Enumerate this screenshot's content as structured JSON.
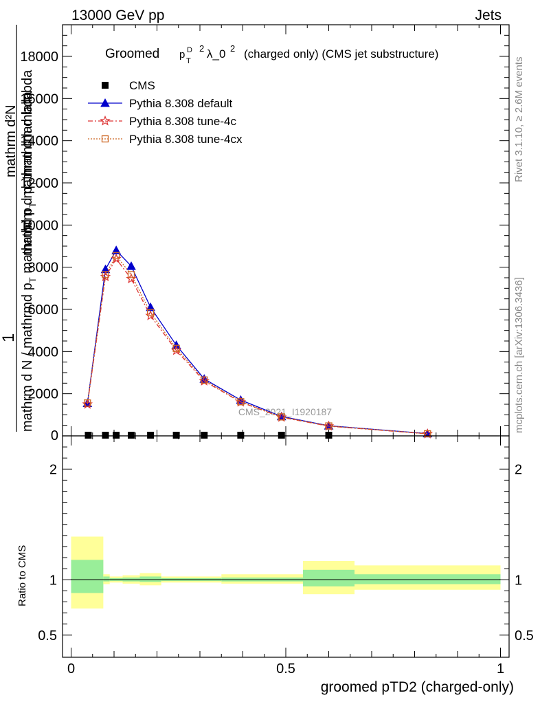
{
  "header": {
    "left": "13000 GeV pp",
    "right": "Jets"
  },
  "side_labels": {
    "rivet": "Rivet 3.1.10, ≥ 2.6M events",
    "mcplots": "mcplots.cern.ch [arXiv:1306.3436]"
  },
  "watermark": "CMS_2021_I1920187",
  "title": {
    "main": "Groomed",
    "p": "p",
    "sub": "T",
    "sup": "D",
    "sq": "2",
    "rest": "λ_0",
    "rest_sup": "2",
    "tail": "(charged only) (CMS jet substructure)"
  },
  "ylabel_main": {
    "one": "1",
    "den": "mathrm d N / mathrmd p",
    "den_sub": "T",
    "den_tail": " mathrmd p",
    "den_sub2": "T",
    "den_tail2": " mathrm d lambda",
    "num": "mathrm d²N",
    "num_sub": "",
    "overlap": "mathrm d p",
    "overlap_sub": "T",
    "overlap_tail": " mathrm d lambda"
  },
  "ylabel_ratio": "Ratio to CMS",
  "xlabel": "groomed pTD2 (charged-only)",
  "legend": [
    {
      "label": "CMS",
      "style": "cms"
    },
    {
      "label": "Pythia 8.308 default",
      "style": "default"
    },
    {
      "label": "Pythia 8.308 tune-4c",
      "style": "tune4c"
    },
    {
      "label": "Pythia 8.308 tune-4cx",
      "style": "tune4cx"
    }
  ],
  "colors": {
    "default": "#0000cc",
    "tune4c": "#dd3333",
    "tune4cx": "#cc6622",
    "band_inner": "#99ee99",
    "band_outer": "#ffff99",
    "cms": "#000000"
  },
  "chart_data": {
    "type": "line",
    "main": {
      "xlim": [
        -0.02,
        1.02
      ],
      "ylim": [
        0,
        19500
      ],
      "yticks": [
        2000,
        4000,
        6000,
        8000,
        10000,
        12000,
        14000,
        16000,
        18000
      ],
      "ytick_labels": [
        "2000",
        "4000",
        "6000",
        "8000",
        "10000",
        "12000",
        "14000",
        "16000",
        "18000"
      ],
      "cms": {
        "x": [
          0.04,
          0.08,
          0.105,
          0.14,
          0.185,
          0.245,
          0.31,
          0.395,
          0.49,
          0.6
        ],
        "y": [
          0,
          0,
          0,
          0,
          0,
          0,
          0,
          0,
          0,
          0
        ]
      },
      "series": [
        {
          "name": "Pythia 8.308 default",
          "style": "default",
          "x": [
            0.038,
            0.08,
            0.105,
            0.14,
            0.185,
            0.245,
            0.31,
            0.395,
            0.49,
            0.6,
            0.83
          ],
          "y": [
            1550,
            7900,
            8800,
            8050,
            6100,
            4300,
            2700,
            1700,
            920,
            480,
            110
          ]
        },
        {
          "name": "Pythia 8.308 tune-4c",
          "style": "tune4c",
          "x": [
            0.038,
            0.08,
            0.105,
            0.14,
            0.185,
            0.245,
            0.31,
            0.395,
            0.49,
            0.6,
            0.83
          ],
          "y": [
            1500,
            7550,
            8400,
            7450,
            5700,
            4050,
            2600,
            1600,
            880,
            460,
            95
          ]
        },
        {
          "name": "Pythia 8.308 tune-4cx",
          "style": "tune4cx",
          "x": [
            0.038,
            0.08,
            0.105,
            0.14,
            0.185,
            0.245,
            0.31,
            0.395,
            0.49,
            0.6,
            0.83
          ],
          "y": [
            1560,
            7650,
            8550,
            7650,
            5850,
            4150,
            2650,
            1620,
            900,
            470,
            100
          ]
        }
      ]
    },
    "ratio": {
      "ylim": [
        0.3,
        2.3
      ],
      "yticks": [
        0.5,
        1,
        2
      ],
      "ytick_labels": [
        "0.5",
        "1",
        "2"
      ],
      "xticks": [
        0,
        0.5,
        1
      ],
      "xtick_labels": [
        "0",
        "0.5",
        "1"
      ],
      "bins": [
        {
          "x0": 0.0,
          "x1": 0.075,
          "inner": [
            0.88,
            1.18
          ],
          "outer": [
            0.74,
            1.39
          ]
        },
        {
          "x0": 0.075,
          "x1": 0.09,
          "inner": [
            0.985,
            1.03
          ],
          "outer": [
            0.96,
            1.05
          ]
        },
        {
          "x0": 0.09,
          "x1": 0.12,
          "inner": [
            0.99,
            1.015
          ],
          "outer": [
            0.975,
            1.03
          ]
        },
        {
          "x0": 0.12,
          "x1": 0.16,
          "inner": [
            0.985,
            1.02
          ],
          "outer": [
            0.965,
            1.04
          ]
        },
        {
          "x0": 0.16,
          "x1": 0.21,
          "inner": [
            0.98,
            1.03
          ],
          "outer": [
            0.95,
            1.06
          ]
        },
        {
          "x0": 0.21,
          "x1": 0.35,
          "inner": [
            0.99,
            1.015
          ],
          "outer": [
            0.975,
            1.03
          ]
        },
        {
          "x0": 0.35,
          "x1": 0.54,
          "inner": [
            0.985,
            1.02
          ],
          "outer": [
            0.965,
            1.05
          ]
        },
        {
          "x0": 0.54,
          "x1": 0.66,
          "inner": [
            0.94,
            1.09
          ],
          "outer": [
            0.87,
            1.17
          ]
        },
        {
          "x0": 0.66,
          "x1": 1.0,
          "inner": [
            0.96,
            1.05
          ],
          "outer": [
            0.91,
            1.13
          ]
        }
      ]
    }
  }
}
